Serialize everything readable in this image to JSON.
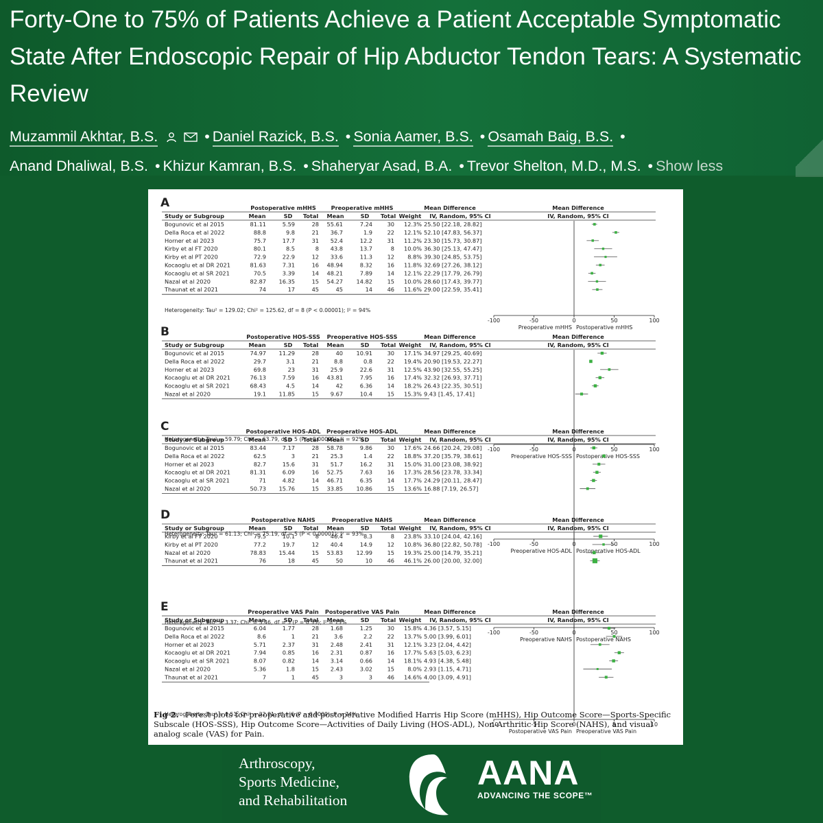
{
  "article": {
    "title": "Forty-One to 75% of Patients Achieve a Patient Acceptable Symptomatic State After Endoscopic Repair of Hip Abductor Tendon Tears: A Systematic Review",
    "authors": [
      "Muzammil Akhtar, B.S.",
      "Daniel Razick, B.S.",
      "Sonia Aamer, B.S.",
      "Osamah Baig, B.S.",
      "Anand Dhaliwal, B.S.",
      "Khizur Kamran, B.S.",
      "Shaheryar Asad, B.A.",
      "Trevor Shelton, M.D., M.S."
    ],
    "show_less": "Show less"
  },
  "figure": {
    "caption_label": "Fig 2.",
    "caption_text": "Forest plots for preoperative and postoperative Modified Harris Hip Score (mHHS), Hip Outcome Score—Sports-Specific Subscale (HOS-SSS), Hip Outcome Score—Activities of Daily Living (HOS-ADL), Non-Arthritic Hip Score (NAHS), and visual analog scale (VAS) for Pain.",
    "hdr_study": "Study or Subgroup",
    "hdr_mean": "Mean",
    "hdr_sd": "SD",
    "hdr_total": "Total",
    "hdr_weight": "Weight",
    "hdr_md": "Mean Difference",
    "hdr_ci": "IV, Random, 95% CI",
    "panels": [
      {
        "letter": "A",
        "group1": "Postoperative mHHS",
        "group2": "Preoperative mHHS",
        "heterogeneity": "Heterogeneity: Tau² = 129.02; Chi² = 125.62, df = 8 (P < 0.00001); I² = 94%",
        "axis_ticks": [
          "-100",
          "-50",
          "0",
          "50",
          "100"
        ],
        "axis_min": -100,
        "axis_max": 100,
        "axis_left": "Preoperative mHHS",
        "axis_right": "Postoperative mHHS",
        "rows": [
          {
            "study": "Bogunovic et al 2015",
            "m1": "81.11",
            "sd1": "5.59",
            "n1": "28",
            "m2": "55.61",
            "sd2": "7.24",
            "n2": "30",
            "weight": "12.3%",
            "ci": "25.50 [22.18, 28.82]",
            "est": 25.5,
            "lo": 22.18,
            "hi": 28.82
          },
          {
            "study": "Della Roca et al 2022",
            "m1": "88.8",
            "sd1": "9.8",
            "n1": "21",
            "m2": "36.7",
            "sd2": "1.9",
            "n2": "22",
            "weight": "12.1%",
            "ci": "52.10 [47.83, 56.37]",
            "est": 52.1,
            "lo": 47.83,
            "hi": 56.37
          },
          {
            "study": "Horner et al 2023",
            "m1": "75.7",
            "sd1": "17.7",
            "n1": "31",
            "m2": "52.4",
            "sd2": "12.2",
            "n2": "31",
            "weight": "11.2%",
            "ci": "23.30 [15.73, 30.87]",
            "est": 23.3,
            "lo": 15.73,
            "hi": 30.87
          },
          {
            "study": "Kirby et al FT 2020",
            "m1": "80.1",
            "sd1": "8.5",
            "n1": "8",
            "m2": "43.8",
            "sd2": "13.7",
            "n2": "8",
            "weight": "10.0%",
            "ci": "36.30 [25.13, 47.47]",
            "est": 36.3,
            "lo": 25.13,
            "hi": 47.47
          },
          {
            "study": "Kirby et al PT 2020",
            "m1": "72.9",
            "sd1": "22.9",
            "n1": "12",
            "m2": "33.6",
            "sd2": "11.3",
            "n2": "12",
            "weight": "8.8%",
            "ci": "39.30 [24.85, 53.75]",
            "est": 39.3,
            "lo": 24.85,
            "hi": 53.75
          },
          {
            "study": "Kocaoglu et al DR 2021",
            "m1": "81.63",
            "sd1": "7.31",
            "n1": "16",
            "m2": "48.94",
            "sd2": "8.32",
            "n2": "16",
            "weight": "11.8%",
            "ci": "32.69 [27.26, 38.12]",
            "est": 32.69,
            "lo": 27.26,
            "hi": 38.12
          },
          {
            "study": "Kocaoglu et al SR 2021",
            "m1": "70.5",
            "sd1": "3.39",
            "n1": "14",
            "m2": "48.21",
            "sd2": "7.89",
            "n2": "14",
            "weight": "12.1%",
            "ci": "22.29 [17.79, 26.79]",
            "est": 22.29,
            "lo": 17.79,
            "hi": 26.79
          },
          {
            "study": "Nazal et al 2020",
            "m1": "82.87",
            "sd1": "16.35",
            "n1": "15",
            "m2": "54.27",
            "sd2": "14.82",
            "n2": "15",
            "weight": "10.0%",
            "ci": "28.60 [17.43, 39.77]",
            "est": 28.6,
            "lo": 17.43,
            "hi": 39.77
          },
          {
            "study": "Thaunat et al 2021",
            "m1": "74",
            "sd1": "17",
            "n1": "45",
            "m2": "45",
            "sd2": "14",
            "n2": "46",
            "weight": "11.6%",
            "ci": "29.00 [22.59, 35.41]",
            "est": 29.0,
            "lo": 22.59,
            "hi": 35.41
          }
        ]
      },
      {
        "letter": "B",
        "group1": "Postoperative HOS-SSS",
        "group2": "Preoperative HOS-SSS",
        "heterogeneity": "Heterogeneity: Tau² = 59.79; Chi² = 63.79, df = 5 (P < 0.00001); I² = 92%",
        "axis_ticks": [
          "-100",
          "-50",
          "0",
          "50",
          "100"
        ],
        "axis_min": -100,
        "axis_max": 100,
        "axis_left": "Preoperative HOS-SSS",
        "axis_right": "Postoperative HOS-SSS",
        "rows": [
          {
            "study": "Bogunovic et al 2015",
            "m1": "74.97",
            "sd1": "11.29",
            "n1": "28",
            "m2": "40",
            "sd2": "10.91",
            "n2": "30",
            "weight": "17.1%",
            "ci": "34.97 [29.25, 40.69]",
            "est": 34.97,
            "lo": 29.25,
            "hi": 40.69
          },
          {
            "study": "Della Roca et al 2022",
            "m1": "29.7",
            "sd1": "3.1",
            "n1": "21",
            "m2": "8.8",
            "sd2": "0.8",
            "n2": "22",
            "weight": "19.4%",
            "ci": "20.90 [19.53, 22.27]",
            "est": 20.9,
            "lo": 19.53,
            "hi": 22.27
          },
          {
            "study": "Horner et al 2023",
            "m1": "69.8",
            "sd1": "23",
            "n1": "31",
            "m2": "25.9",
            "sd2": "22.6",
            "n2": "31",
            "weight": "12.5%",
            "ci": "43.90 [32.55, 55.25]",
            "est": 43.9,
            "lo": 32.55,
            "hi": 55.25
          },
          {
            "study": "Kocaoglu et al DR 2021",
            "m1": "76.13",
            "sd1": "7.59",
            "n1": "16",
            "m2": "43.81",
            "sd2": "7.95",
            "n2": "16",
            "weight": "17.4%",
            "ci": "32.32 [26.93, 37.71]",
            "est": 32.32,
            "lo": 26.93,
            "hi": 37.71
          },
          {
            "study": "Kocaoglu et al SR 2021",
            "m1": "68.43",
            "sd1": "4.5",
            "n1": "14",
            "m2": "42",
            "sd2": "6.36",
            "n2": "14",
            "weight": "18.2%",
            "ci": "26.43 [22.35, 30.51]",
            "est": 26.43,
            "lo": 22.35,
            "hi": 30.51
          },
          {
            "study": "Nazal et al 2020",
            "m1": "19.1",
            "sd1": "11.85",
            "n1": "15",
            "m2": "9.67",
            "sd2": "10.4",
            "n2": "15",
            "weight": "15.3%",
            "ci": "9.43 [1.45, 17.41]",
            "est": 9.43,
            "lo": 1.45,
            "hi": 17.41
          }
        ]
      },
      {
        "letter": "C",
        "group1": "Postoperative HOS-ADL",
        "group2": "Preoperative HOS-ADL",
        "heterogeneity": "Heterogeneity: Tau² = 61.13; Chi² = 75.19, df = 5 (P < 0.00001); I² = 93%",
        "axis_ticks": [
          "-100",
          "-50",
          "0",
          "50",
          "100"
        ],
        "axis_min": -100,
        "axis_max": 100,
        "axis_left": "Preoperative HOS-ADL",
        "axis_right": "Postoperative HOS-ADL",
        "rows": [
          {
            "study": "Bogunovic et al 2015",
            "m1": "83.44",
            "sd1": "7.17",
            "n1": "28",
            "m2": "58.78",
            "sd2": "9.86",
            "n2": "30",
            "weight": "17.6%",
            "ci": "24.66 [20.24, 29.08]",
            "est": 24.66,
            "lo": 20.24,
            "hi": 29.08
          },
          {
            "study": "Della Roca et al 2022",
            "m1": "62.5",
            "sd1": "3",
            "n1": "21",
            "m2": "25.3",
            "sd2": "1.4",
            "n2": "22",
            "weight": "18.8%",
            "ci": "37.20 [35.79, 38.61]",
            "est": 37.2,
            "lo": 35.79,
            "hi": 38.61
          },
          {
            "study": "Horner et al 2023",
            "m1": "82.7",
            "sd1": "15.6",
            "n1": "31",
            "m2": "51.7",
            "sd2": "16.2",
            "n2": "31",
            "weight": "15.0%",
            "ci": "31.00 [23.08, 38.92]",
            "est": 31.0,
            "lo": 23.08,
            "hi": 38.92
          },
          {
            "study": "Kocaoglu et al DR 2021",
            "m1": "81.31",
            "sd1": "6.09",
            "n1": "16",
            "m2": "52.75",
            "sd2": "7.63",
            "n2": "16",
            "weight": "17.3%",
            "ci": "28.56 [23.78, 33.34]",
            "est": 28.56,
            "lo": 23.78,
            "hi": 33.34
          },
          {
            "study": "Kocaoglu et al SR 2021",
            "m1": "71",
            "sd1": "4.82",
            "n1": "14",
            "m2": "46.71",
            "sd2": "6.35",
            "n2": "14",
            "weight": "17.7%",
            "ci": "24.29 [20.11, 28.47]",
            "est": 24.29,
            "lo": 20.11,
            "hi": 28.47
          },
          {
            "study": "Nazal et al 2020",
            "m1": "50.73",
            "sd1": "15.76",
            "n1": "15",
            "m2": "33.85",
            "sd2": "10.86",
            "n2": "15",
            "weight": "13.6%",
            "ci": "16.88 [7.19, 26.57]",
            "est": 16.88,
            "lo": 7.19,
            "hi": 26.57
          }
        ]
      },
      {
        "letter": "D",
        "group1": "Postoperative NAHS",
        "group2": "Preoperative NAHS",
        "heterogeneity": "Heterogeneity: Tau² = 3.37; Chi² = 3.46, df = 3 (P = 0.33); I² = 13%",
        "axis_ticks": [
          "-100",
          "-50",
          "0",
          "50",
          "100"
        ],
        "axis_min": -100,
        "axis_max": 100,
        "axis_left": "Preoperative NAHS",
        "axis_right": "Postoperative NAHS",
        "rows": [
          {
            "study": "Kirby et al FT 2020",
            "m1": "79.5",
            "sd1": "10.1",
            "n1": "8",
            "m2": "46.4",
            "sd2": "8.3",
            "n2": "8",
            "weight": "23.8%",
            "ci": "33.10 [24.04, 42.16]",
            "est": 33.1,
            "lo": 24.04,
            "hi": 42.16
          },
          {
            "study": "Kirby et al PT 2020",
            "m1": "77.2",
            "sd1": "19.7",
            "n1": "12",
            "m2": "40.4",
            "sd2": "14.9",
            "n2": "12",
            "weight": "10.8%",
            "ci": "36.80 [22.82, 50.78]",
            "est": 36.8,
            "lo": 22.82,
            "hi": 50.78
          },
          {
            "study": "Nazal et al 2020",
            "m1": "78.83",
            "sd1": "15.44",
            "n1": "15",
            "m2": "53.83",
            "sd2": "12.99",
            "n2": "15",
            "weight": "19.3%",
            "ci": "25.00 [14.79, 35.21]",
            "est": 25.0,
            "lo": 14.79,
            "hi": 35.21
          },
          {
            "study": "Thaunat et al 2021",
            "m1": "76",
            "sd1": "18",
            "n1": "45",
            "m2": "50",
            "sd2": "10",
            "n2": "46",
            "weight": "46.1%",
            "ci": "26.00 [20.00, 32.00]",
            "est": 26.0,
            "lo": 20.0,
            "hi": 32.0
          }
        ]
      },
      {
        "letter": "E",
        "group1": "Preoperative VAS Pain",
        "group2": "Postoperative VAS Pain",
        "heterogeneity": "Heterogeneity: Tau² = 0.51; Chi² = 22.81, df = 6 (P = 0.0009); I² = 74%",
        "axis_ticks": [
          "-10",
          "-5",
          "0",
          "5",
          "10"
        ],
        "axis_min": -10,
        "axis_max": 10,
        "axis_left": "Postoperative VAS Pain",
        "axis_right": "Preoperative VAS Pain",
        "rows": [
          {
            "study": "Bogunovic et al 2015",
            "m1": "6.04",
            "sd1": "1.77",
            "n1": "28",
            "m2": "1.68",
            "sd2": "1.25",
            "n2": "30",
            "weight": "15.8%",
            "ci": "4.36 [3.57, 5.15]",
            "est": 4.36,
            "lo": 3.57,
            "hi": 5.15
          },
          {
            "study": "Della Roca et al 2022",
            "m1": "8.6",
            "sd1": "1",
            "n1": "21",
            "m2": "3.6",
            "sd2": "2.2",
            "n2": "22",
            "weight": "13.7%",
            "ci": "5.00 [3.99, 6.01]",
            "est": 5.0,
            "lo": 3.99,
            "hi": 6.01
          },
          {
            "study": "Horner et al 2023",
            "m1": "5.71",
            "sd1": "2.37",
            "n1": "31",
            "m2": "2.48",
            "sd2": "2.41",
            "n2": "31",
            "weight": "12.1%",
            "ci": "3.23 [2.04, 4.42]",
            "est": 3.23,
            "lo": 2.04,
            "hi": 4.42
          },
          {
            "study": "Kocaoglu et al DR 2021",
            "m1": "7.94",
            "sd1": "0.85",
            "n1": "16",
            "m2": "2.31",
            "sd2": "0.87",
            "n2": "16",
            "weight": "17.7%",
            "ci": "5.63 [5.03, 6.23]",
            "est": 5.63,
            "lo": 5.03,
            "hi": 6.23
          },
          {
            "study": "Kocaoglu et al SR 2021",
            "m1": "8.07",
            "sd1": "0.82",
            "n1": "14",
            "m2": "3.14",
            "sd2": "0.66",
            "n2": "14",
            "weight": "18.1%",
            "ci": "4.93 [4.38, 5.48]",
            "est": 4.93,
            "lo": 4.38,
            "hi": 5.48
          },
          {
            "study": "Nazal et al 2020",
            "m1": "5.36",
            "sd1": "1.8",
            "n1": "15",
            "m2": "2.43",
            "sd2": "3.02",
            "n2": "15",
            "weight": "8.0%",
            "ci": "2.93 [1.15, 4.71]",
            "est": 2.93,
            "lo": 1.15,
            "hi": 4.71
          },
          {
            "study": "Thaunat et al 2021",
            "m1": "7",
            "sd1": "1",
            "n1": "45",
            "m2": "3",
            "sd2": "3",
            "n2": "46",
            "weight": "14.6%",
            "ci": "4.00 [3.09, 4.91]",
            "est": 4.0,
            "lo": 3.09,
            "hi": 4.91
          }
        ]
      }
    ]
  },
  "footer": {
    "journal_lines": [
      "Arthroscopy,",
      "Sports Medicine,",
      "and Rehabilitation"
    ],
    "aana_word": "AANA",
    "aana_tagline": "ADVANCING THE SCOPE™"
  },
  "colors": {
    "background": "#0f5c2c",
    "marker": "#3cb043",
    "text_white": "#ffffff"
  }
}
